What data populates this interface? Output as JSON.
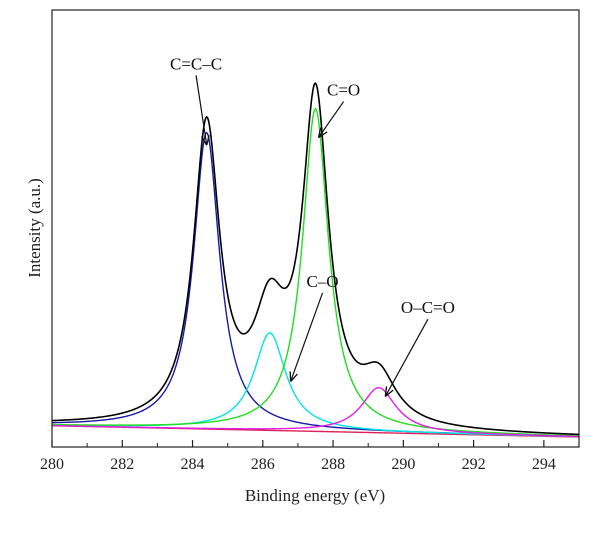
{
  "chart_data": {
    "type": "line",
    "xlabel": "Binding energy (eV)",
    "ylabel": "Intensity (a.u.)",
    "xlim": [
      280,
      295
    ],
    "ylim": [
      0,
      1.05
    ],
    "x_ticks": [
      "280",
      "282",
      "284",
      "286",
      "288",
      "290",
      "292",
      "294"
    ],
    "grid": false,
    "legend": "none",
    "components": [
      {
        "label": "C=C–C",
        "center": 284.4,
        "height": 0.79,
        "width": 0.45,
        "color": "#1a1aa6"
      },
      {
        "label": "C–O",
        "center": 286.2,
        "height": 0.26,
        "width": 0.55,
        "color": "#00e5e5"
      },
      {
        "label": "C=O",
        "center": 287.5,
        "height": 0.86,
        "width": 0.45,
        "color": "#22dd22"
      },
      {
        "label": "O–C=O",
        "center": 289.3,
        "height": 0.12,
        "width": 0.6,
        "color": "#e020e0"
      }
    ],
    "baseline": {
      "start": 0.03,
      "end": 0.0,
      "color": "#e0205a"
    },
    "envelope": {
      "color": "#000000"
    },
    "annotations": [
      {
        "text": "C=C–C",
        "text_x": 284.1,
        "text_y": 0.98,
        "arrow_to": [
          284.4,
          0.78
        ]
      },
      {
        "text": "C=O",
        "text_x": 288.3,
        "text_y": 0.91,
        "arrow_to": [
          287.6,
          0.8
        ]
      },
      {
        "text": "C–O",
        "text_x": 287.7,
        "text_y": 0.4,
        "arrow_to": [
          286.8,
          0.15
        ]
      },
      {
        "text": "O–C=O",
        "text_x": 290.7,
        "text_y": 0.33,
        "arrow_to": [
          289.5,
          0.11
        ]
      }
    ]
  }
}
